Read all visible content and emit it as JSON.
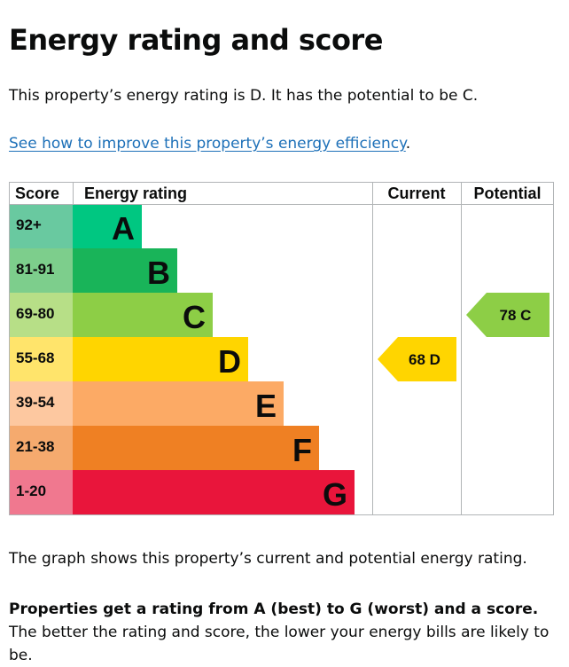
{
  "page": {
    "title": "Energy rating and score",
    "intro": "This property’s energy rating is D. It has the potential to be C.",
    "improve_link": "See how to improve this property’s energy efficiency",
    "improve_link_suffix": ".",
    "graph_description": "The graph shows this property’s current and potential energy rating.",
    "explainer_bold": "Properties get a rating from A (best) to G (worst) and a score.",
    "explainer_rest": " The better the rating and score, the lower your energy bills are likely to be."
  },
  "chart_data": {
    "type": "table",
    "headers": {
      "score": "Score",
      "rating": "Energy rating",
      "current": "Current",
      "potential": "Potential"
    },
    "bands": [
      {
        "band": "A",
        "score_range": "92+",
        "color": "#00c781",
        "light": "#69c9a0"
      },
      {
        "band": "B",
        "score_range": "81-91",
        "color": "#19b459",
        "light": "#7dce8c"
      },
      {
        "band": "C",
        "score_range": "69-80",
        "color": "#8dce46",
        "light": "#b7df87"
      },
      {
        "band": "D",
        "score_range": "55-68",
        "color": "#ffd500",
        "light": "#ffe46b"
      },
      {
        "band": "E",
        "score_range": "39-54",
        "color": "#fcaa65",
        "light": "#fdc8a0"
      },
      {
        "band": "F",
        "score_range": "21-38",
        "color": "#ef8023",
        "light": "#f5aa6e"
      },
      {
        "band": "G",
        "score_range": "1-20",
        "color": "#e9153b",
        "light": "#f0788f"
      }
    ],
    "current": {
      "score": 68,
      "band": "D",
      "label": "68 D"
    },
    "potential": {
      "score": 78,
      "band": "C",
      "label": "78 C"
    }
  }
}
